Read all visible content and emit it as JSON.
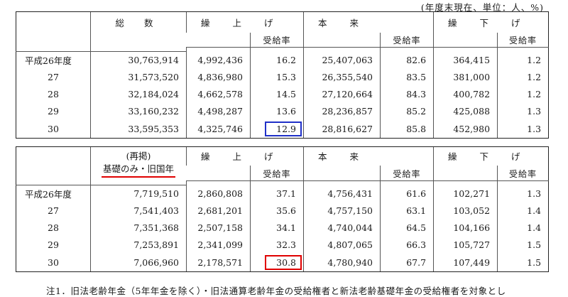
{
  "unit_note": "(年度末現在、単位：人、%)",
  "headers": {
    "total": "総 数",
    "kuriage": "繰 上 げ",
    "honrai": "本 来",
    "kurisage": "繰 下 げ",
    "rate": "受給率",
    "saisho_1": "(再掲)",
    "saisho_2": "基礎のみ・旧国年"
  },
  "table1": {
    "rows": [
      {
        "year": "平成26年度",
        "total": "30,763,914",
        "ku": "4,992,436",
        "ku_r": "16.2",
        "ho": "25,407,063",
        "ho_r": "82.6",
        "ks": "364,415",
        "ks_r": "1.2"
      },
      {
        "year": "27",
        "total": "31,573,520",
        "ku": "4,836,980",
        "ku_r": "15.3",
        "ho": "26,355,540",
        "ho_r": "83.5",
        "ks": "381,000",
        "ks_r": "1.2"
      },
      {
        "year": "28",
        "total": "32,184,024",
        "ku": "4,662,578",
        "ku_r": "14.5",
        "ho": "27,120,664",
        "ho_r": "84.3",
        "ks": "400,782",
        "ks_r": "1.2"
      },
      {
        "year": "29",
        "total": "33,160,232",
        "ku": "4,498,287",
        "ku_r": "13.6",
        "ho": "28,236,857",
        "ho_r": "85.2",
        "ks": "425,088",
        "ks_r": "1.3"
      },
      {
        "year": "30",
        "total": "33,595,353",
        "ku": "4,325,746",
        "ku_r": "12.9",
        "ho": "28,816,627",
        "ho_r": "85.8",
        "ks": "452,980",
        "ks_r": "1.3"
      }
    ]
  },
  "table2": {
    "rows": [
      {
        "year": "平成26年度",
        "total": "7,719,510",
        "ku": "2,860,808",
        "ku_r": "37.1",
        "ho": "4,756,431",
        "ho_r": "61.6",
        "ks": "102,271",
        "ks_r": "1.3"
      },
      {
        "year": "27",
        "total": "7,541,403",
        "ku": "2,681,201",
        "ku_r": "35.6",
        "ho": "4,757,150",
        "ho_r": "63.1",
        "ks": "103,052",
        "ks_r": "1.4"
      },
      {
        "year": "28",
        "total": "7,351,368",
        "ku": "2,507,158",
        "ku_r": "34.1",
        "ho": "4,740,044",
        "ho_r": "64.5",
        "ks": "104,166",
        "ks_r": "1.4"
      },
      {
        "year": "29",
        "total": "7,253,891",
        "ku": "2,341,099",
        "ku_r": "32.3",
        "ho": "4,807,065",
        "ho_r": "66.3",
        "ks": "105,727",
        "ks_r": "1.5"
      },
      {
        "year": "30",
        "total": "7,066,960",
        "ku": "2,178,571",
        "ku_r": "30.8",
        "ho": "4,780,940",
        "ho_r": "67.7",
        "ks": "107,449",
        "ks_r": "1.5"
      }
    ]
  },
  "footnote": "注1．旧法老齢年金（5年年金を除く）・旧法通算老齢年金の受給権者と新法老齢基礎年金の受給権者を対象とし",
  "highlight_colors": {
    "blue": "#2030c8",
    "red": "#e00000"
  }
}
